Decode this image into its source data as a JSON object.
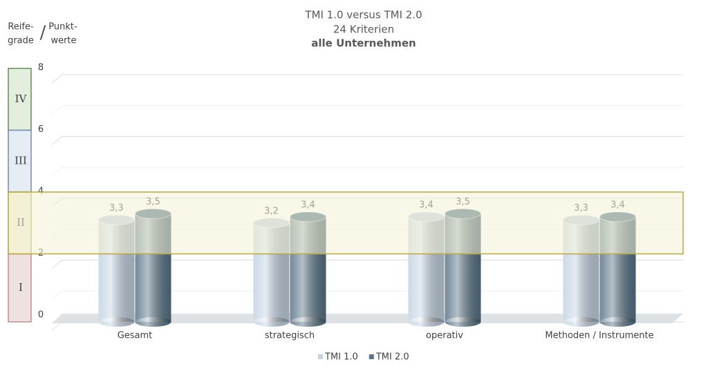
{
  "chart_data": {
    "type": "bar",
    "title": "TMI 1.0 versus TMI 2.0",
    "subtitle": "24 Kriterien",
    "subtitle2": "alle Unternehmen",
    "left_axis_label": [
      "Reife-",
      "grade"
    ],
    "separator": "/",
    "y_axis_label": [
      "Punkt-",
      "werte"
    ],
    "categories": [
      "Gesamt",
      "strategisch",
      "operativ",
      "Methoden / Instrumente"
    ],
    "series": [
      {
        "name": "TMI 1.0",
        "color": "#c3d3e3",
        "values": [
          3.3,
          3.2,
          3.4,
          3.3
        ],
        "value_labels": [
          "3,3",
          "3,2",
          "3,4",
          "3,3"
        ]
      },
      {
        "name": "TMI 2.0",
        "color": "#587387",
        "values": [
          3.5,
          3.4,
          3.5,
          3.4
        ],
        "value_labels": [
          "3,5",
          "3,4",
          "3,5",
          "3,4"
        ]
      }
    ],
    "ylim": [
      0,
      8
    ],
    "yticks": [
      0,
      2,
      4,
      6,
      8
    ],
    "minor_yticks": [
      1,
      3,
      5,
      7
    ],
    "grid": true,
    "legend": "bottom",
    "maturity_levels": [
      {
        "label": "IV",
        "range": [
          6.2,
          8.2
        ],
        "color": "#e3eedd",
        "border": "#5f9150",
        "highlight": false
      },
      {
        "label": "III",
        "range": [
          4.2,
          6.2
        ],
        "color": "#e5ecf3",
        "border": "#6e8bb3",
        "highlight": false
      },
      {
        "label": "II",
        "range": [
          2.2,
          4.2
        ],
        "color": "#f2f1d6",
        "border": "#b8aa3c",
        "highlight": true
      },
      {
        "label": "I",
        "range": [
          0,
          2.2
        ],
        "color": "#efe1e0",
        "border": "#c58d8d",
        "highlight": false
      }
    ]
  }
}
